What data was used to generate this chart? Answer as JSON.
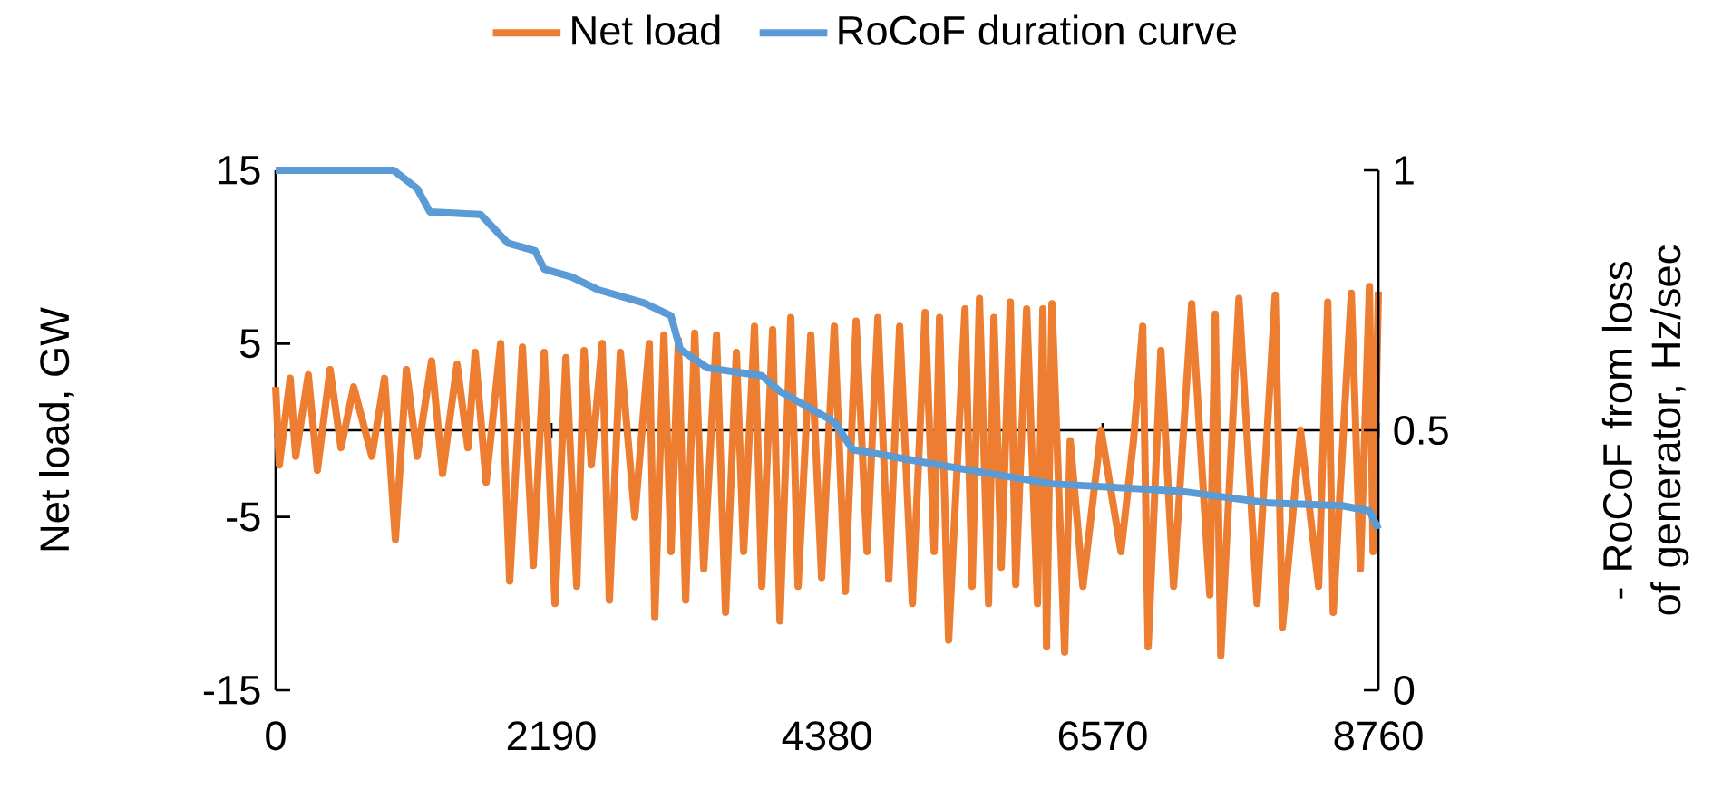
{
  "chart_data": {
    "type": "line",
    "ylabel": "Net load, GW",
    "y2label": "- RoCoF from loss of generator, Hz/sec",
    "legend": "top",
    "xlim": [
      0,
      8760
    ],
    "xticks": [
      0,
      2190,
      4380,
      6570,
      8760
    ],
    "ylim": [
      -15,
      15
    ],
    "yticks": [
      -15,
      -5,
      5,
      15
    ],
    "y2lim": [
      0,
      1
    ],
    "y2ticks": [
      0,
      0.5,
      1
    ],
    "series": [
      {
        "name": "Net load",
        "color": "#ed7d31",
        "x": [
          0,
          29,
          115,
          159,
          259,
          331,
          432,
          519,
          620,
          764,
          865,
          951,
          1038,
          1124,
          1239,
          1326,
          1441,
          1527,
          1585,
          1672,
          1787,
          1859,
          1960,
          2046,
          2133,
          2219,
          2306,
          2392,
          2450,
          2507,
          2594,
          2651,
          2738,
          2853,
          2968,
          3012,
          3084,
          3141,
          3199,
          3257,
          3329,
          3401,
          3502,
          3574,
          3660,
          3718,
          3804,
          3862,
          3948,
          4006,
          4092,
          4150,
          4251,
          4337,
          4438,
          4525,
          4611,
          4698,
          4784,
          4871,
          4957,
          5058,
          5159,
          5231,
          5274,
          5346,
          5476,
          5533,
          5591,
          5663,
          5706,
          5764,
          5836,
          5879,
          5966,
          6052,
          6095,
          6124,
          6167,
          6268,
          6312,
          6413,
          6557,
          6715,
          6816,
          6888,
          6931,
          7032,
          7133,
          7277,
          7421,
          7464,
          7508,
          7652,
          7796,
          7940,
          7997,
          8141,
          8285,
          8358,
          8401,
          8545,
          8617,
          8689,
          8718,
          8760
        ],
        "values": [
          2.5,
          -2.0,
          3.0,
          -1.5,
          3.2,
          -2.3,
          3.5,
          -1.0,
          2.5,
          -1.5,
          3.0,
          -6.3,
          3.5,
          -1.5,
          4.0,
          -2.5,
          3.8,
          -1.0,
          4.5,
          -3.0,
          5.0,
          -8.7,
          4.8,
          -7.8,
          4.5,
          -10.0,
          4.2,
          -9.0,
          4.6,
          -2.0,
          5.0,
          -9.8,
          4.5,
          -5.0,
          5.0,
          -10.8,
          5.5,
          -7.0,
          5.2,
          -9.8,
          5.6,
          -8.0,
          5.5,
          -10.5,
          4.5,
          -7.0,
          6.0,
          -9.0,
          5.8,
          -11.0,
          6.5,
          -9.0,
          5.5,
          -8.5,
          6.0,
          -9.3,
          6.3,
          -7.0,
          6.5,
          -8.6,
          6.0,
          -10.0,
          6.8,
          -7.0,
          6.5,
          -12.1,
          7.0,
          -9.0,
          7.6,
          -10.0,
          6.5,
          -7.9,
          7.4,
          -8.9,
          7.0,
          -10.0,
          7.0,
          -12.5,
          7.3,
          -12.8,
          -0.6,
          -9.0,
          0,
          -7.0,
          -0.5,
          6.0,
          -12.5,
          4.6,
          -9.0,
          7.3,
          -9.5,
          6.7,
          -13.0,
          7.6,
          -10.0,
          7.8,
          -11.4,
          0,
          -9.0,
          7.4,
          -10.5,
          7.9,
          -8.0,
          8.3,
          -7.0,
          8.0
        ]
      },
      {
        "name": "RoCoF duration curve",
        "color": "#5b9bd5",
        "axis": "y2",
        "x": [
          0,
          937,
          1124,
          1225,
          1628,
          1844,
          2061,
          2133,
          2349,
          2565,
          2925,
          3141,
          3213,
          3430,
          3862,
          4006,
          4438,
          4582,
          5303,
          5591,
          6167,
          7176,
          7897,
          8473,
          8689,
          8760
        ],
        "values": [
          1,
          1,
          0.965,
          0.92,
          0.915,
          0.86,
          0.845,
          0.81,
          0.795,
          0.77,
          0.745,
          0.72,
          0.656,
          0.62,
          0.605,
          0.575,
          0.516,
          0.463,
          0.432,
          0.42,
          0.397,
          0.383,
          0.36,
          0.355,
          0.345,
          0.31
        ]
      }
    ]
  }
}
